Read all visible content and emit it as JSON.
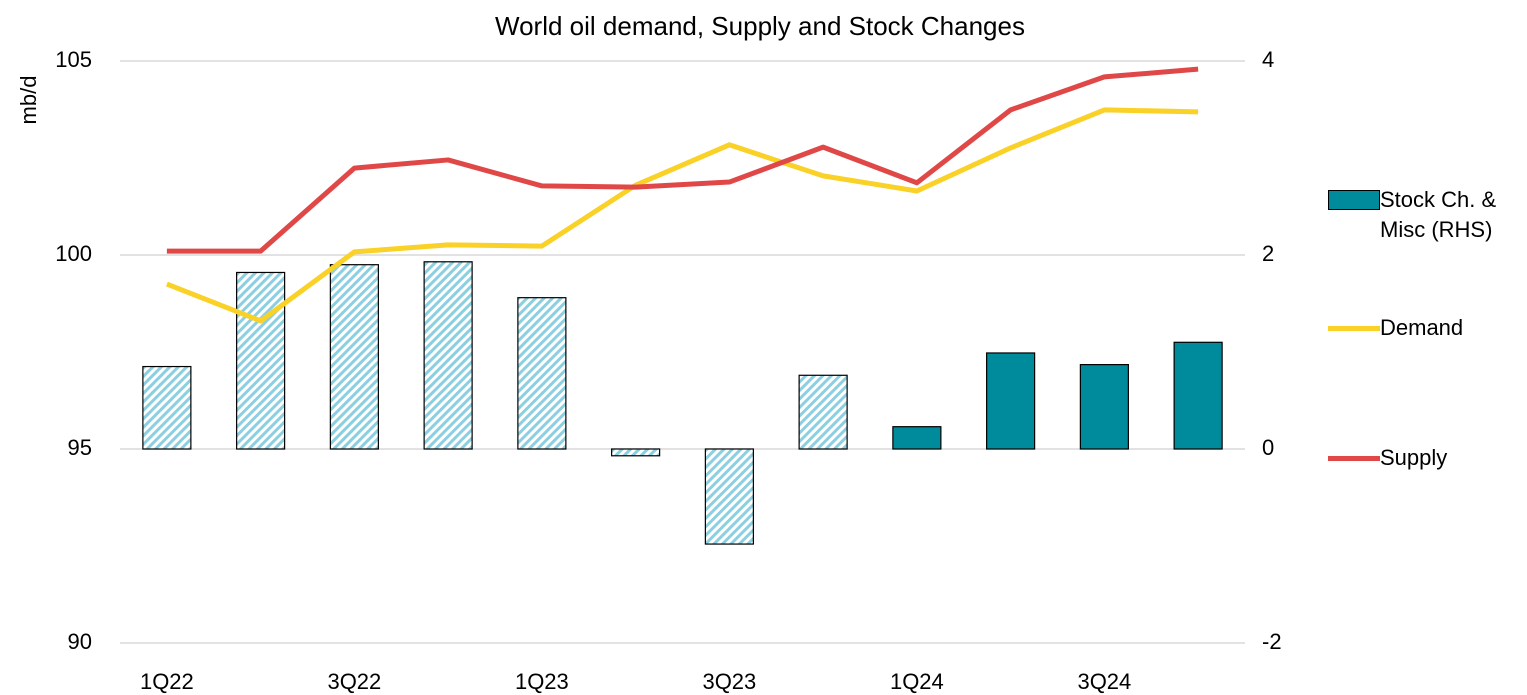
{
  "chart_data": {
    "type": "bar-line",
    "title": "World oil demand, Supply and Stock Changes",
    "y_label": "mb/d",
    "categories": [
      "1Q22",
      null,
      "3Q22",
      null,
      "1Q23",
      null,
      "3Q23",
      null,
      "1Q24",
      null,
      "3Q24",
      null
    ],
    "series": [
      {
        "name": "Stock Ch. & Misc (RHS)",
        "type": "bar",
        "axis": "y2",
        "color": "#008b9c",
        "hatch_color": "#8ccfe0",
        "patterns": [
          "hatch",
          "hatch",
          "hatch",
          "hatch",
          "hatch",
          "hatch",
          "hatch",
          "hatch",
          "solid",
          "solid",
          "solid",
          "solid"
        ],
        "values": [
          0.85,
          1.82,
          1.9,
          1.93,
          1.56,
          -0.07,
          -0.98,
          0.76,
          0.23,
          0.99,
          0.87,
          1.1
        ]
      },
      {
        "name": "Demand",
        "type": "line",
        "color": "#f9d127",
        "values": [
          99.25,
          98.3,
          100.08,
          100.26,
          100.23,
          101.8,
          102.84,
          102.04,
          101.65,
          102.76,
          103.74,
          103.69
        ]
      },
      {
        "name": "Supply",
        "type": "line",
        "color": "#e04848",
        "values": [
          100.1,
          100.1,
          102.24,
          102.45,
          101.78,
          101.75,
          101.88,
          102.78,
          101.86,
          103.74,
          104.59,
          104.79
        ]
      }
    ],
    "ylim": [
      90,
      105
    ],
    "yticks": [
      90,
      95,
      100,
      105
    ],
    "y2lim": [
      -2,
      4
    ],
    "y2ticks": [
      -2,
      0,
      2,
      4
    ],
    "grid": true,
    "legend": "right"
  }
}
